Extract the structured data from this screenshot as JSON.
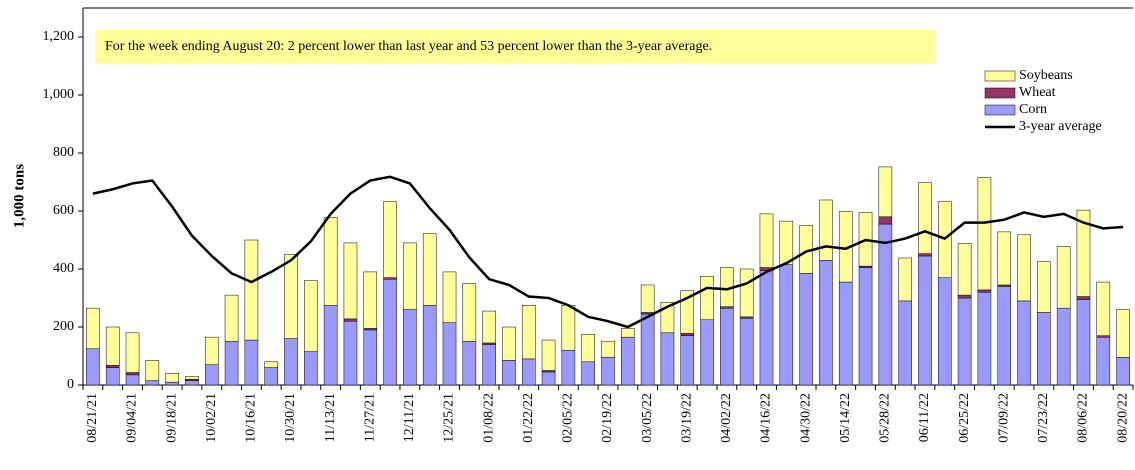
{
  "chart_data": {
    "type": "bar",
    "stacked": true,
    "annotation": "For the week ending August 20: 2 percent lower than last year and 53 percent lower than the 3-year average.",
    "y_label": "1,000 tons",
    "legend": "top-right",
    "categories": [
      "08/21/21",
      null,
      "09/04/21",
      null,
      "09/18/21",
      null,
      "10/02/21",
      null,
      "10/16/21",
      null,
      "10/30/21",
      null,
      "11/13/21",
      null,
      "11/27/21",
      null,
      "12/11/21",
      null,
      "12/25/21",
      null,
      "01/08/22",
      null,
      "01/22/22",
      null,
      "02/05/22",
      null,
      "02/19/22",
      null,
      "03/05/22",
      null,
      "03/19/22",
      null,
      "04/02/22",
      null,
      "04/16/22",
      null,
      "04/30/22",
      null,
      "05/14/22",
      null,
      "05/28/22",
      null,
      "06/11/22",
      null,
      "06/25/22",
      null,
      "07/09/22",
      null,
      "07/23/22",
      null,
      "08/06/22",
      null,
      "08/20/22"
    ],
    "ylim": [
      0,
      1300
    ],
    "yticks": [
      0,
      200,
      400,
      600,
      800,
      {
        "value": 1000,
        "label": "1,000"
      },
      {
        "value": 1200,
        "label": "1,200"
      }
    ],
    "series": [
      {
        "name": "Corn",
        "color": "#9999ff",
        "values": [
          125,
          60,
          35,
          15,
          10,
          15,
          70,
          150,
          155,
          60,
          160,
          115,
          275,
          220,
          190,
          365,
          260,
          275,
          215,
          150,
          140,
          85,
          90,
          45,
          120,
          80,
          95,
          165,
          245,
          180,
          170,
          225,
          265,
          230,
          395,
          415,
          385,
          430,
          355,
          405,
          555,
          290,
          445,
          370,
          300,
          320,
          340,
          290,
          250,
          265,
          295,
          165,
          95
        ]
      },
      {
        "name": "Wheat",
        "color": "#993366",
        "values": [
          0,
          8,
          8,
          0,
          0,
          5,
          0,
          0,
          0,
          0,
          0,
          0,
          0,
          8,
          5,
          5,
          0,
          0,
          0,
          0,
          5,
          0,
          0,
          5,
          0,
          0,
          0,
          0,
          5,
          0,
          8,
          0,
          5,
          5,
          10,
          0,
          0,
          0,
          0,
          5,
          25,
          0,
          8,
          0,
          10,
          8,
          5,
          0,
          0,
          0,
          10,
          5,
          0
        ]
      },
      {
        "name": "Soybeans",
        "color": "#ffff99",
        "values": [
          140,
          132,
          137,
          70,
          30,
          10,
          95,
          160,
          345,
          20,
          290,
          245,
          303,
          262,
          195,
          262,
          230,
          247,
          175,
          200,
          110,
          115,
          185,
          105,
          155,
          95,
          55,
          30,
          95,
          105,
          147,
          150,
          135,
          165,
          185,
          150,
          165,
          208,
          243,
          185,
          172,
          148,
          245,
          262,
          178,
          387,
          183,
          228,
          175,
          213,
          298,
          185,
          165
        ]
      },
      {
        "name": "3-year average",
        "type": "line",
        "color": "#000000",
        "values": [
          660,
          675,
          695,
          705,
          615,
          515,
          445,
          385,
          355,
          390,
          430,
          495,
          590,
          660,
          705,
          718,
          695,
          610,
          535,
          440,
          365,
          345,
          305,
          300,
          275,
          235,
          220,
          200,
          235,
          270,
          300,
          335,
          330,
          350,
          390,
          420,
          460,
          478,
          470,
          500,
          490,
          505,
          530,
          505,
          560,
          560,
          570,
          595,
          580,
          590,
          560,
          540,
          545
        ]
      }
    ]
  }
}
